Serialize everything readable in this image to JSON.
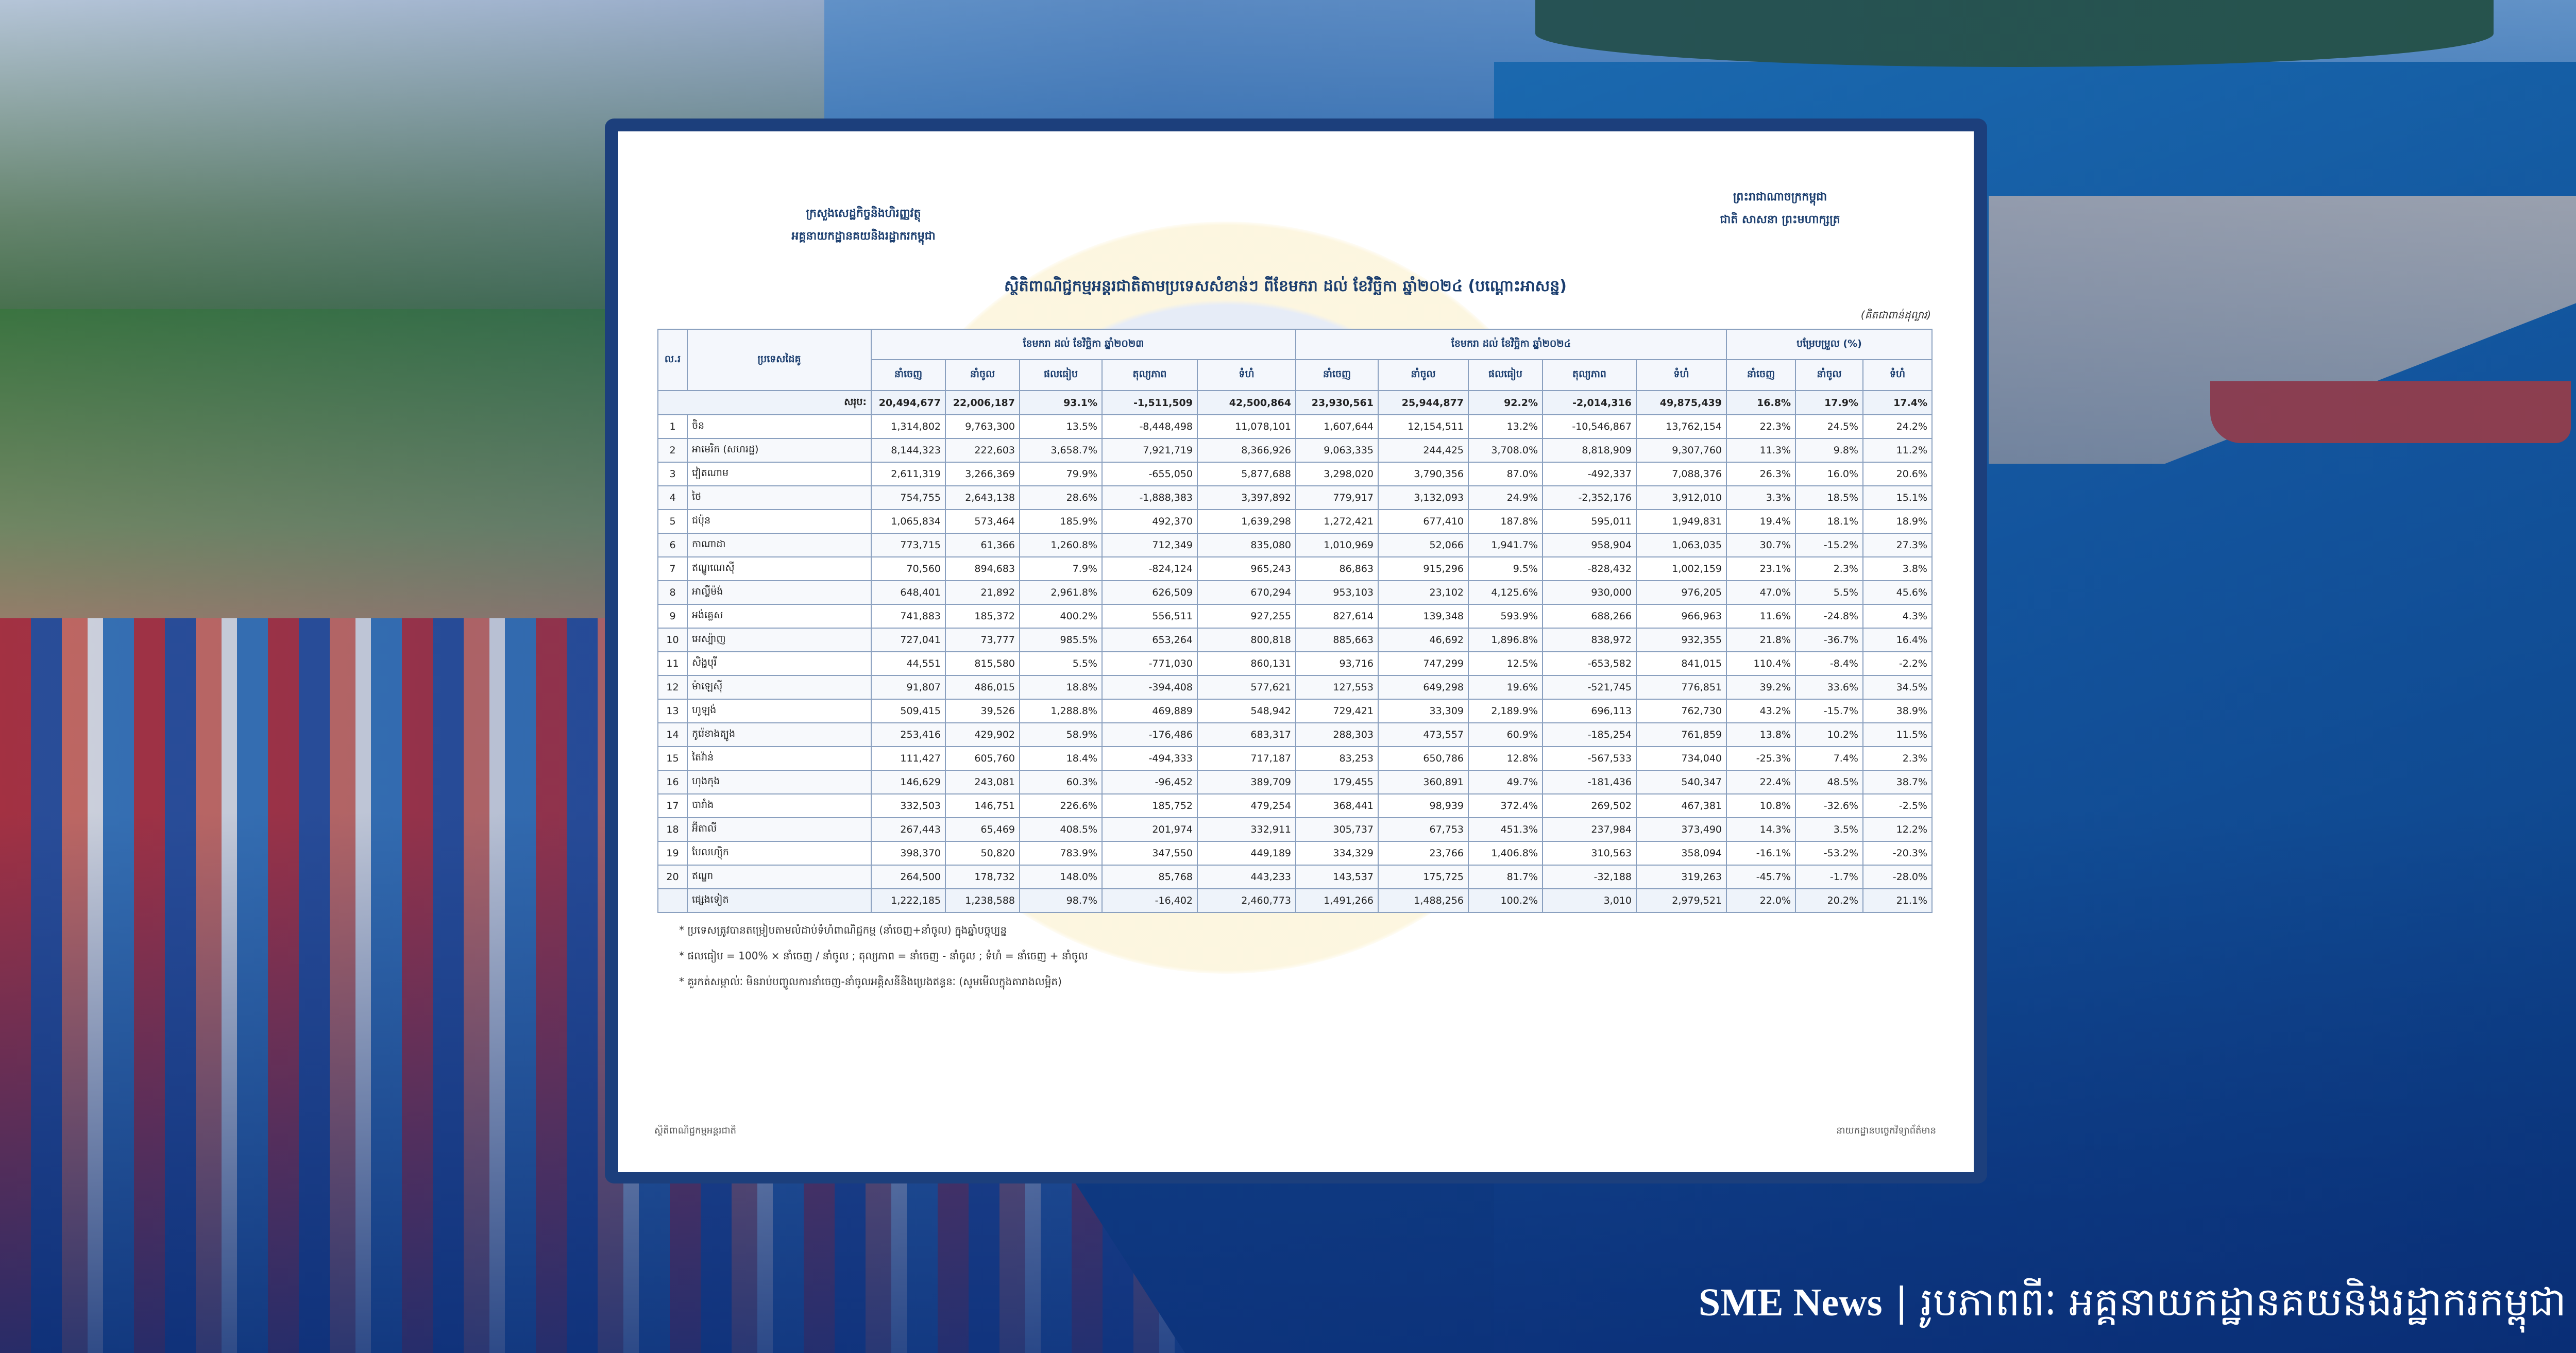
{
  "header": {
    "left": [
      "ក្រសួងសេដ្ឋកិច្ចនិងហិរញ្ញវត្ថុ",
      "អគ្គនាយកដ្ឋានគយនិងរដ្ឋាករកម្ពុជា"
    ],
    "right": [
      "ព្រះរាជាណាចក្រកម្ពុជា",
      "ជាតិ សាសនា ព្រះមហាក្សត្រ"
    ],
    "title": "ស្ថិតិពាណិជ្ជកម្មអន្តរជាតិតាមប្រទេសសំខាន់ៗ ពីខែមករា ដល់ ខែវិច្ឆិកា ឆ្នាំ២០២៤ (បណ្ដោះអាសន្ន)",
    "unit": "(គិតជាពាន់ដុល្លារ)"
  },
  "table": {
    "col_no": "ល.រ",
    "col_country": "ប្រទេសដៃគូ",
    "period_2023": "ខែមករា ដល់ ខែវិច្ឆិកា ឆ្នាំ២០២៣",
    "period_2024": "ខែមករា ដល់ ខែវិច្ឆិកា ឆ្នាំ២០២៤",
    "change": "បម្រែបម្រួល (%)",
    "subcols": [
      "នាំចេញ",
      "នាំចូល",
      "ផលធៀប",
      "តុល្យភាព",
      "ទំហំ"
    ],
    "change_subcols": [
      "នាំចេញ",
      "នាំចូល",
      "ទំហំ"
    ],
    "total": {
      "label": "សរុប:",
      "cells": [
        "20,494,677",
        "22,006,187",
        "93.1%",
        "-1,511,509",
        "42,500,864",
        "23,930,561",
        "25,944,877",
        "92.2%",
        "-2,014,316",
        "49,875,439",
        "16.8%",
        "17.9%",
        "17.4%"
      ]
    },
    "rows": [
      [
        "1",
        "ចិន",
        "1,314,802",
        "9,763,300",
        "13.5%",
        "-8,448,498",
        "11,078,101",
        "1,607,644",
        "12,154,511",
        "13.2%",
        "-10,546,867",
        "13,762,154",
        "22.3%",
        "24.5%",
        "24.2%"
      ],
      [
        "2",
        "អាមេរិក (សហរដ្ឋ)",
        "8,144,323",
        "222,603",
        "3,658.7%",
        "7,921,719",
        "8,366,926",
        "9,063,335",
        "244,425",
        "3,708.0%",
        "8,818,909",
        "9,307,760",
        "11.3%",
        "9.8%",
        "11.2%"
      ],
      [
        "3",
        "វៀតណាម",
        "2,611,319",
        "3,266,369",
        "79.9%",
        "-655,050",
        "5,877,688",
        "3,298,020",
        "3,790,356",
        "87.0%",
        "-492,337",
        "7,088,376",
        "26.3%",
        "16.0%",
        "20.6%"
      ],
      [
        "4",
        "ថៃ",
        "754,755",
        "2,643,138",
        "28.6%",
        "-1,888,383",
        "3,397,892",
        "779,917",
        "3,132,093",
        "24.9%",
        "-2,352,176",
        "3,912,010",
        "3.3%",
        "18.5%",
        "15.1%"
      ],
      [
        "5",
        "ជប៉ុន",
        "1,065,834",
        "573,464",
        "185.9%",
        "492,370",
        "1,639,298",
        "1,272,421",
        "677,410",
        "187.8%",
        "595,011",
        "1,949,831",
        "19.4%",
        "18.1%",
        "18.9%"
      ],
      [
        "6",
        "កាណាដា",
        "773,715",
        "61,366",
        "1,260.8%",
        "712,349",
        "835,080",
        "1,010,969",
        "52,066",
        "1,941.7%",
        "958,904",
        "1,063,035",
        "30.7%",
        "-15.2%",
        "27.3%"
      ],
      [
        "7",
        "ឥណ្ឌូណេស៊ី",
        "70,560",
        "894,683",
        "7.9%",
        "-824,124",
        "965,243",
        "86,863",
        "915,296",
        "9.5%",
        "-828,432",
        "1,002,159",
        "23.1%",
        "2.3%",
        "3.8%"
      ],
      [
        "8",
        "អាល្លឺម៉ង់",
        "648,401",
        "21,892",
        "2,961.8%",
        "626,509",
        "670,294",
        "953,103",
        "23,102",
        "4,125.6%",
        "930,000",
        "976,205",
        "47.0%",
        "5.5%",
        "45.6%"
      ],
      [
        "9",
        "អង់គ្លេស",
        "741,883",
        "185,372",
        "400.2%",
        "556,511",
        "927,255",
        "827,614",
        "139,348",
        "593.9%",
        "688,266",
        "966,963",
        "11.6%",
        "-24.8%",
        "4.3%"
      ],
      [
        "10",
        "អេស្ប៉ាញ",
        "727,041",
        "73,777",
        "985.5%",
        "653,264",
        "800,818",
        "885,663",
        "46,692",
        "1,896.8%",
        "838,972",
        "932,355",
        "21.8%",
        "-36.7%",
        "16.4%"
      ],
      [
        "11",
        "សិង្ហបុរី",
        "44,551",
        "815,580",
        "5.5%",
        "-771,030",
        "860,131",
        "93,716",
        "747,299",
        "12.5%",
        "-653,582",
        "841,015",
        "110.4%",
        "-8.4%",
        "-2.2%"
      ],
      [
        "12",
        "ម៉ាឡេស៊ី",
        "91,807",
        "486,015",
        "18.8%",
        "-394,408",
        "577,621",
        "127,553",
        "649,298",
        "19.6%",
        "-521,745",
        "776,851",
        "39.2%",
        "33.6%",
        "34.5%"
      ],
      [
        "13",
        "ហូឡង់",
        "509,415",
        "39,526",
        "1,288.8%",
        "469,889",
        "548,942",
        "729,421",
        "33,309",
        "2,189.9%",
        "696,113",
        "762,730",
        "43.2%",
        "-15.7%",
        "38.9%"
      ],
      [
        "14",
        "កូរ៉េខាងត្បូង",
        "253,416",
        "429,902",
        "58.9%",
        "-176,486",
        "683,317",
        "288,303",
        "473,557",
        "60.9%",
        "-185,254",
        "761,859",
        "13.8%",
        "10.2%",
        "11.5%"
      ],
      [
        "15",
        "តៃវ៉ាន់",
        "111,427",
        "605,760",
        "18.4%",
        "-494,333",
        "717,187",
        "83,253",
        "650,786",
        "12.8%",
        "-567,533",
        "734,040",
        "-25.3%",
        "7.4%",
        "2.3%"
      ],
      [
        "16",
        "ហុងកុង",
        "146,629",
        "243,081",
        "60.3%",
        "-96,452",
        "389,709",
        "179,455",
        "360,891",
        "49.7%",
        "-181,436",
        "540,347",
        "22.4%",
        "48.5%",
        "38.7%"
      ],
      [
        "17",
        "បារាំង",
        "332,503",
        "146,751",
        "226.6%",
        "185,752",
        "479,254",
        "368,441",
        "98,939",
        "372.4%",
        "269,502",
        "467,381",
        "10.8%",
        "-32.6%",
        "-2.5%"
      ],
      [
        "18",
        "អ៊ីតាលី",
        "267,443",
        "65,469",
        "408.5%",
        "201,974",
        "332,911",
        "305,737",
        "67,753",
        "451.3%",
        "237,984",
        "373,490",
        "14.3%",
        "3.5%",
        "12.2%"
      ],
      [
        "19",
        "បែលហ្ស៊ិក",
        "398,370",
        "50,820",
        "783.9%",
        "347,550",
        "449,189",
        "334,329",
        "23,766",
        "1,406.8%",
        "310,563",
        "358,094",
        "-16.1%",
        "-53.2%",
        "-20.3%"
      ],
      [
        "20",
        "ឥណ្ឌា",
        "264,500",
        "178,732",
        "148.0%",
        "85,768",
        "443,233",
        "143,537",
        "175,725",
        "81.7%",
        "-32,188",
        "319,263",
        "-45.7%",
        "-1.7%",
        "-28.0%"
      ]
    ],
    "others": {
      "label": "ផ្សេងទៀត",
      "cells": [
        "1,222,185",
        "1,238,588",
        "98.7%",
        "-16,402",
        "2,460,773",
        "1,491,266",
        "1,488,256",
        "100.2%",
        "3,010",
        "2,979,521",
        "22.0%",
        "20.2%",
        "21.1%"
      ]
    }
  },
  "notes": [
    "* ប្រទេសត្រូវបានតម្រៀបតាមលំដាប់ទំហំពាណិជ្ជកម្ម (នាំចេញ+នាំចូល) ក្នុងឆ្នាំបច្ចុប្បន្ន",
    "* ផលធៀប = 100% × នាំចេញ / នាំចូល ; តុល្យភាព = នាំចេញ - នាំចូល ; ទំហំ = នាំចេញ + នាំចូល",
    "* គួរកត់សម្គាល់ៈ មិនរាប់បញ្ចូលការនាំចេញ-នាំចូលអគ្គិសនីនិងប្រេងឥន្ធនៈ (សូមមើលក្នុងតារាងលម្អិត)"
  ],
  "footer": {
    "left": "ស្ថិតិពាណិជ្ជកម្មអន្តរជាតិ",
    "right": "នាយកដ្ឋានបច្ចេកវិទ្យាព័ត៌មាន"
  },
  "caption": {
    "brand": "SME News",
    "separator": "|",
    "credit": "រូបភាពពីៈ អគ្គនាយកដ្ឋានគយនិងរដ្ឋាករកម្ពុជា"
  }
}
